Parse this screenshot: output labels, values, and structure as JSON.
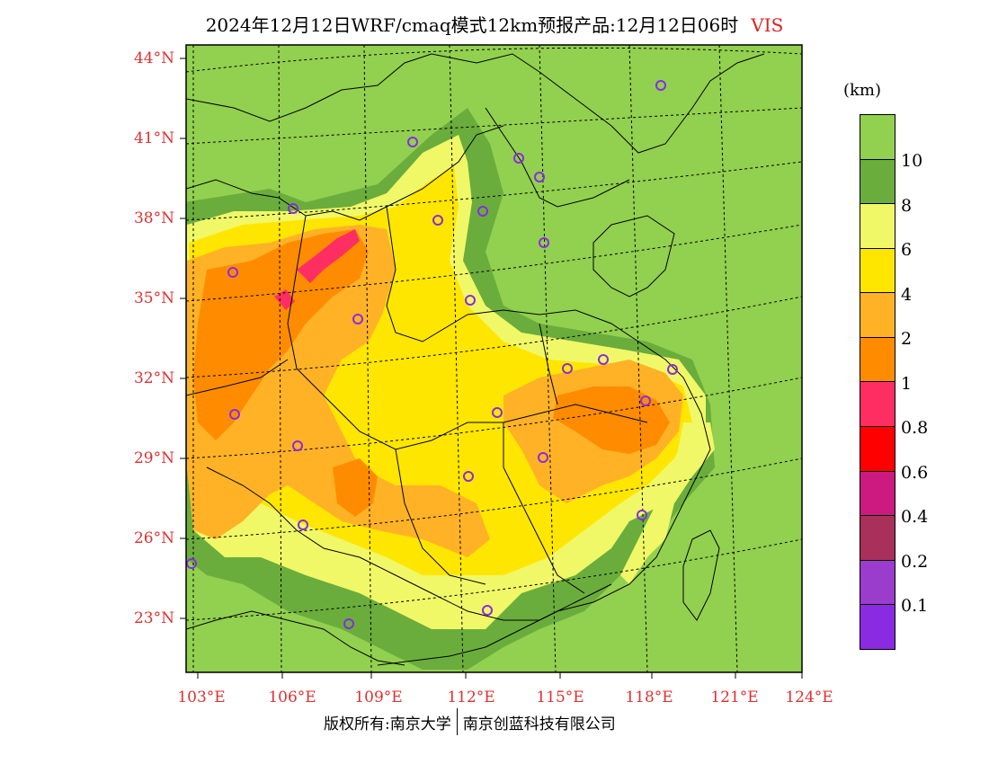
{
  "title": {
    "text": "2024年12月12日WRF/cmaq模式12km预报产品:12月12日06时",
    "variable": "VIS"
  },
  "units": "(km)",
  "lat_labels": [
    "44°N",
    "41°N",
    "38°N",
    "35°N",
    "32°N",
    "29°N",
    "26°N",
    "23°N"
  ],
  "lon_labels": [
    "103°E",
    "106°E",
    "109°E",
    "112°E",
    "115°E",
    "118°E",
    "121°E",
    "124°E"
  ],
  "colorbar": {
    "colors": [
      "#92d050",
      "#6aad3c",
      "#f0f868",
      "#ffe600",
      "#ffb226",
      "#ff8c00",
      "#ff2e62",
      "#ff0000",
      "#cc1a80",
      "#a8305a",
      "#9a3ccc",
      "#8a2be2"
    ],
    "labels": [
      "10",
      "8",
      "6",
      "4",
      "2",
      "1",
      "0.8",
      "0.6",
      "0.4",
      "0.2",
      "0.1"
    ]
  },
  "colors": {
    "background": "#92d050",
    "dark_green": "#6aad3c",
    "light_yellow": "#f0f868",
    "yellow": "#ffe600",
    "light_orange": "#ffb226",
    "orange": "#ff8c00",
    "pink": "#ff2e62",
    "station_marker": "#8a2be2",
    "label_red": "#e03030"
  },
  "footer": {
    "left": "版权所有:南京大学",
    "right": "南京创蓝科技有限公司"
  }
}
